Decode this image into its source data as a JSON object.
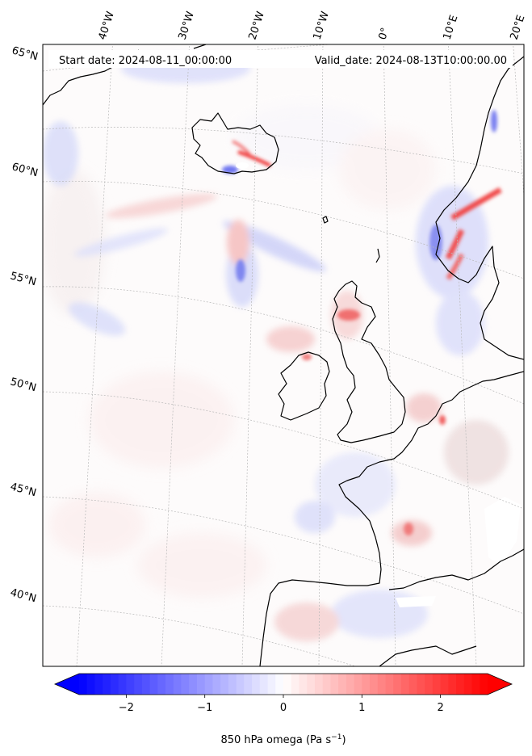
{
  "header": {
    "start_label": "Start date: 2024-08-11_00:00:00",
    "valid_label": "Valid_date: 2024-08-13T10:00:00.00"
  },
  "longitude_labels": [
    "40°W",
    "30°W",
    "20°W",
    "10°W",
    "0°",
    "10°E",
    "20°E"
  ],
  "latitude_labels": [
    "65°N",
    "60°N",
    "55°N",
    "50°N",
    "45°N",
    "40°N"
  ],
  "colorbar": {
    "ticks": [
      "−2",
      "−1",
      "0",
      "1",
      "2"
    ],
    "tick_values": [
      -2,
      -1,
      0,
      1,
      2
    ],
    "range": [
      -2.6,
      2.6
    ],
    "label_main": "850 hPa omega (Pa s",
    "label_sup": "−1",
    "label_end": ")",
    "low_color": "#0000ff",
    "mid_color": "#ffffff",
    "high_color": "#ff0000"
  },
  "colors": {
    "coastline": "#000000",
    "gridline": "#b8b8b8"
  }
}
